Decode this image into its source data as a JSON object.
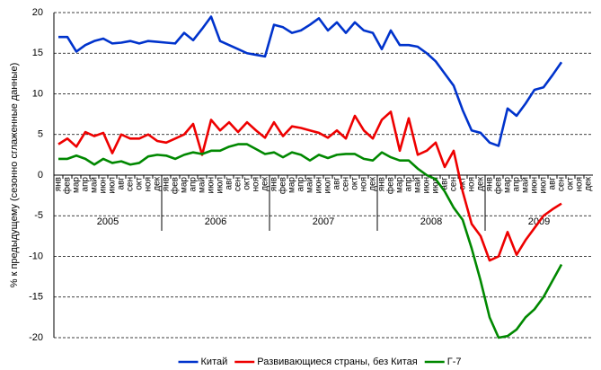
{
  "chart_data": {
    "type": "line",
    "y_label": "% к предыдущему (сезонно сглаженные данные)",
    "categories": [
      "янв",
      "фев",
      "мар",
      "апр",
      "май",
      "июн",
      "июл",
      "авг",
      "сен",
      "окт",
      "ноя",
      "дек",
      "янв",
      "фев",
      "мар",
      "апр",
      "май",
      "июн",
      "июл",
      "авг",
      "сен",
      "окт",
      "ноя",
      "дек",
      "янв",
      "фев",
      "мар",
      "апр",
      "май",
      "июн",
      "июл",
      "авг",
      "сен",
      "окт",
      "ноя",
      "дек",
      "янв",
      "фев",
      "мар",
      "апр",
      "май",
      "июн",
      "июл",
      "авг",
      "сен",
      "окт",
      "ноя",
      "дек",
      "янв",
      "фев",
      "мар",
      "апр",
      "май",
      "июн",
      "июл",
      "авг",
      "сен",
      "окт",
      "ноя",
      "дек"
    ],
    "x_groups": [
      "2005",
      "2006",
      "2007",
      "2008",
      "2009"
    ],
    "series": [
      {
        "name": "Китай",
        "color": "#0033cc",
        "values": [
          17,
          17,
          15.2,
          16,
          16.5,
          16.8,
          16.2,
          16.3,
          16.5,
          16.2,
          16.5,
          16.4,
          16.3,
          16.2,
          17.5,
          16.6,
          18,
          19.5,
          16.5,
          16,
          15.5,
          15,
          14.8,
          14.6,
          18.5,
          18.2,
          17.5,
          17.8,
          18.5,
          19.3,
          17.8,
          18.8,
          17.5,
          18.8,
          17.8,
          17.5,
          15.5,
          17.8,
          16,
          16,
          15.8,
          15,
          14,
          12.5,
          11,
          8,
          5.5,
          5.2,
          4,
          3.6,
          8.2,
          7.3,
          8.8,
          10.5,
          10.8,
          12.3,
          13.9,
          null,
          null,
          null
        ]
      },
      {
        "name": "Развивающиеся страны, без Китая",
        "color": "#ee0000",
        "values": [
          3.8,
          4.5,
          3.5,
          5.3,
          4.8,
          5.2,
          2.7,
          5,
          4.5,
          4.5,
          5,
          4.2,
          4,
          4.5,
          5,
          6.3,
          2.5,
          6.8,
          5.5,
          6.5,
          5.3,
          6.5,
          5.5,
          4.6,
          6.5,
          4.8,
          6,
          5.8,
          5.5,
          5.2,
          4.6,
          5.5,
          4.5,
          7.3,
          5.5,
          4.5,
          6.8,
          7.8,
          3,
          7,
          2.5,
          3,
          4,
          1,
          3,
          -2,
          -6,
          -7.5,
          -10.5,
          -10,
          -7,
          -9.8,
          -8,
          -6.5,
          -5,
          -4.2,
          -3.5,
          null,
          null,
          null
        ]
      },
      {
        "name": "Г-7",
        "color": "#008800",
        "values": [
          2,
          2,
          2.4,
          2,
          1.3,
          2,
          1.5,
          1.7,
          1.3,
          1.5,
          2.3,
          2.5,
          2.4,
          2,
          2.5,
          2.8,
          2.6,
          3,
          3,
          3.5,
          3.8,
          3.8,
          3.2,
          2.6,
          2.8,
          2.2,
          2.8,
          2.5,
          1.8,
          2.5,
          2.1,
          2.5,
          2.6,
          2.6,
          2,
          1.8,
          2.8,
          2.2,
          1.8,
          1.8,
          0.8,
          0,
          -0.5,
          -2,
          -4,
          -5.5,
          -9,
          -13,
          -17.5,
          -20,
          -19.8,
          -19,
          -17.5,
          -16.5,
          -15,
          -13,
          -11,
          null,
          null,
          null
        ]
      }
    ],
    "ylim": [
      -20,
      20
    ],
    "yticks": [
      -20,
      -15,
      -10,
      -5,
      0,
      5,
      10,
      15,
      20
    ],
    "grid": true,
    "legend": "bottom"
  }
}
